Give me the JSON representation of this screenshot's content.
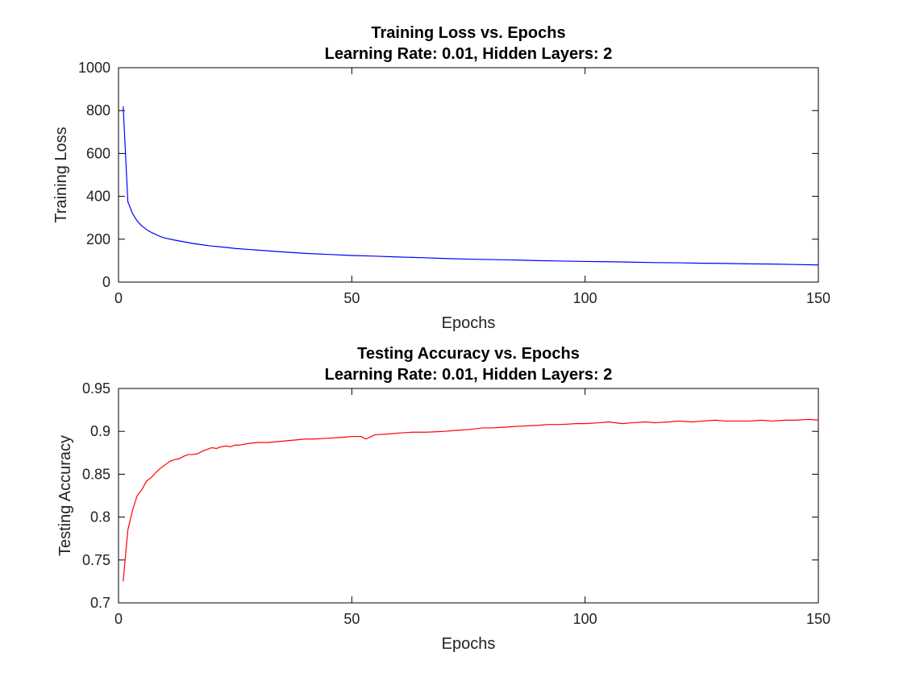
{
  "chart_data": [
    {
      "type": "line",
      "title": "Training Loss vs. Epochs",
      "subtitle": "Learning Rate: 0.01, Hidden Layers: 2",
      "xlabel": "Epochs",
      "ylabel": "Training Loss",
      "xlim": [
        0,
        150
      ],
      "ylim": [
        0,
        1000
      ],
      "xticks": [
        0,
        50,
        100,
        150
      ],
      "yticks": [
        0,
        200,
        400,
        600,
        800,
        1000
      ],
      "grid": false,
      "series": [
        {
          "color": "#0000ff",
          "x": [
            1,
            2,
            3,
            4,
            5,
            6,
            7,
            8,
            9,
            10,
            12,
            14,
            16,
            18,
            20,
            22,
            25,
            28,
            30,
            35,
            40,
            45,
            50,
            55,
            60,
            65,
            70,
            75,
            80,
            85,
            90,
            95,
            100,
            105,
            110,
            115,
            120,
            125,
            130,
            135,
            140,
            145,
            150
          ],
          "y": [
            820,
            375,
            320,
            285,
            262,
            245,
            232,
            222,
            212,
            205,
            196,
            188,
            180,
            174,
            168,
            164,
            157,
            152,
            149,
            141,
            134,
            129,
            124,
            121,
            117,
            114,
            110,
            107,
            105,
            103,
            100,
            98,
            96,
            95,
            93,
            91,
            90,
            88,
            87,
            85,
            84,
            82,
            80
          ]
        }
      ]
    },
    {
      "type": "line",
      "title": "Testing Accuracy vs. Epochs",
      "subtitle": "Learning Rate: 0.01, Hidden Layers: 2",
      "xlabel": "Epochs",
      "ylabel": "Testing Accuracy",
      "xlim": [
        0,
        150
      ],
      "ylim": [
        0.7,
        0.95
      ],
      "xticks": [
        0,
        50,
        100,
        150
      ],
      "yticks": [
        0.7,
        0.75,
        0.8,
        0.85,
        0.9,
        0.95
      ],
      "grid": false,
      "series": [
        {
          "color": "#ff0000",
          "x": [
            1,
            2,
            3,
            4,
            5,
            6,
            7,
            8,
            9,
            10,
            11,
            12,
            13,
            14,
            15,
            16,
            17,
            18,
            19,
            20,
            21,
            22,
            23,
            24,
            25,
            26,
            28,
            30,
            32,
            34,
            36,
            38,
            40,
            42,
            45,
            48,
            50,
            52,
            53,
            55,
            58,
            60,
            63,
            66,
            70,
            72,
            75,
            78,
            80,
            83,
            86,
            90,
            92,
            95,
            98,
            100,
            103,
            105,
            108,
            110,
            113,
            115,
            118,
            120,
            123,
            125,
            128,
            130,
            133,
            135,
            138,
            140,
            143,
            145,
            148,
            150
          ],
          "y": [
            0.725,
            0.785,
            0.808,
            0.825,
            0.832,
            0.842,
            0.846,
            0.852,
            0.857,
            0.861,
            0.865,
            0.867,
            0.868,
            0.871,
            0.873,
            0.873,
            0.874,
            0.877,
            0.879,
            0.881,
            0.88,
            0.882,
            0.883,
            0.882,
            0.884,
            0.884,
            0.886,
            0.887,
            0.887,
            0.888,
            0.889,
            0.89,
            0.891,
            0.891,
            0.892,
            0.893,
            0.894,
            0.894,
            0.891,
            0.896,
            0.897,
            0.898,
            0.899,
            0.899,
            0.9,
            0.901,
            0.902,
            0.904,
            0.904,
            0.905,
            0.906,
            0.907,
            0.908,
            0.908,
            0.909,
            0.909,
            0.91,
            0.911,
            0.909,
            0.91,
            0.911,
            0.91,
            0.911,
            0.912,
            0.911,
            0.912,
            0.913,
            0.912,
            0.912,
            0.912,
            0.913,
            0.912,
            0.913,
            0.913,
            0.914,
            0.913
          ]
        }
      ]
    }
  ]
}
